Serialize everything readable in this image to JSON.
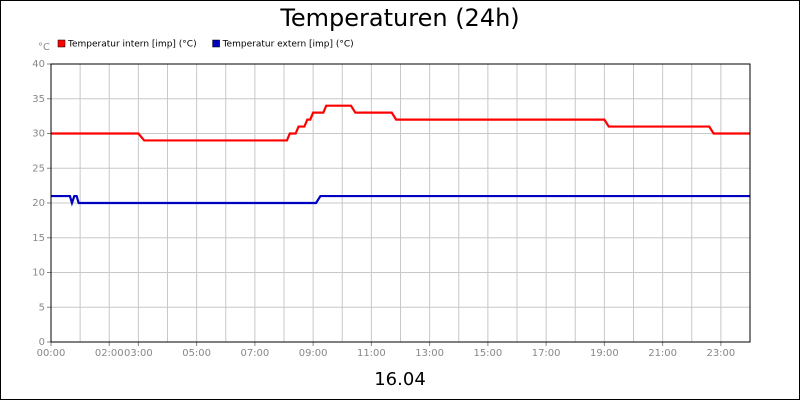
{
  "chart_data": {
    "type": "line",
    "title": "Temperaturen (24h)",
    "y_label": "°C",
    "x_label": "16.04",
    "xlim": [
      0,
      24
    ],
    "ylim": [
      0,
      40
    ],
    "yticks": [
      0,
      5,
      10,
      15,
      20,
      25,
      30,
      35,
      40
    ],
    "xticks": [
      {
        "value": 0,
        "label": "00:00"
      },
      {
        "value": 2,
        "label": "02:00"
      },
      {
        "value": 3,
        "label": "03:00"
      },
      {
        "value": 5,
        "label": "05:00"
      },
      {
        "value": 7,
        "label": "07:00"
      },
      {
        "value": 9,
        "label": "09:00"
      },
      {
        "value": 11,
        "label": "11:00"
      },
      {
        "value": 13,
        "label": "13:00"
      },
      {
        "value": 15,
        "label": "15:00"
      },
      {
        "value": 17,
        "label": "17:00"
      },
      {
        "value": 19,
        "label": "19:00"
      },
      {
        "value": 21,
        "label": "21:00"
      },
      {
        "value": 23,
        "label": "23:00"
      }
    ],
    "x_grid_step": 1,
    "grid": true,
    "legend": "top-left",
    "series": [
      {
        "name": "Temperatur intern [imp] (°C)",
        "color": "#ff0000",
        "x": [
          0,
          3.0,
          3.2,
          8.1,
          8.2,
          8.4,
          8.5,
          8.7,
          8.8,
          8.9,
          9.0,
          9.35,
          9.45,
          10.3,
          10.45,
          11.7,
          11.85,
          19.0,
          19.15,
          22.6,
          22.75,
          24
        ],
        "values": [
          30,
          30,
          29,
          29,
          30,
          30,
          31,
          31,
          32,
          32,
          33,
          33,
          34,
          34,
          33,
          33,
          32,
          32,
          31,
          31,
          30,
          30
        ]
      },
      {
        "name": "Temperatur extern [imp] (°C)",
        "color": "#0000c0",
        "x": [
          0,
          0.65,
          0.72,
          0.8,
          0.88,
          0.95,
          9.1,
          9.25,
          24
        ],
        "values": [
          21,
          21,
          20,
          21,
          21,
          20,
          20,
          21,
          21
        ]
      }
    ]
  }
}
